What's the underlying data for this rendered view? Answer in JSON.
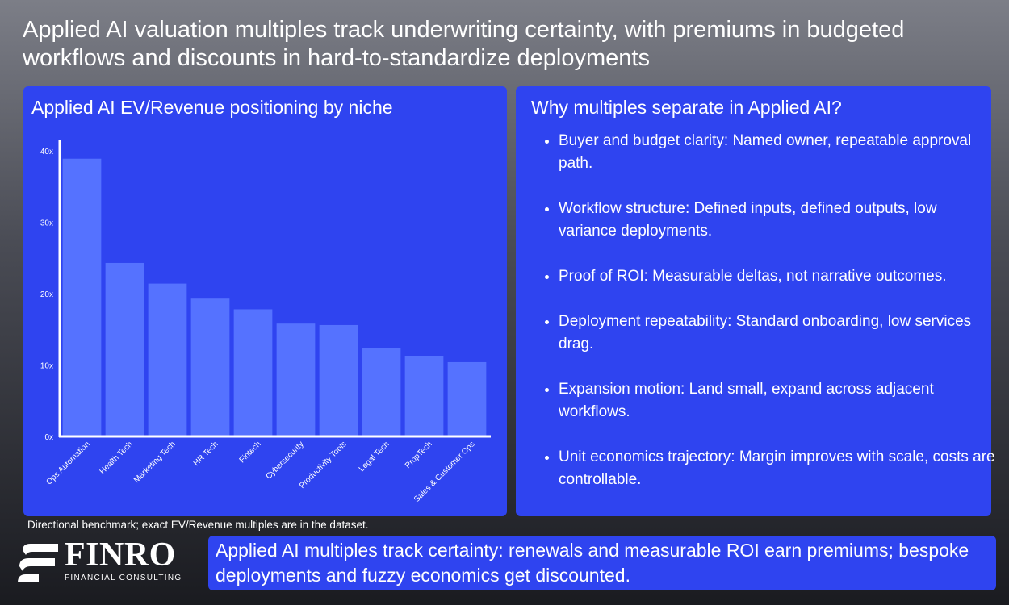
{
  "headline": "Applied AI valuation multiples track underwriting certainty, with premiums in budgeted workflows and discounts in hard-to-standardize deployments",
  "chart_panel": {
    "title": "Applied AI EV/Revenue positioning by niche"
  },
  "chart_data": {
    "type": "bar",
    "title": "Applied AI EV/Revenue positioning by niche",
    "categories": [
      "Ops Automation",
      "Health Tech",
      "Marketing Tech",
      "HR Tech",
      "Fintech",
      "Cybersecurity",
      "Productivity Tools",
      "Legal Tech",
      "PropTech",
      "Sales & Customer Ops"
    ],
    "values": [
      38.9,
      24.3,
      21.4,
      19.3,
      17.8,
      15.8,
      15.6,
      12.4,
      11.3,
      10.4
    ],
    "yticks": [
      "0x",
      "10x",
      "20x",
      "30x",
      "40x"
    ],
    "ylim": [
      0,
      40
    ],
    "grid": false,
    "bar_color": "#5572ff"
  },
  "reasons_panel": {
    "title": "Why multiples separate in Applied AI?",
    "items": [
      "Buyer and budget clarity: Named owner, repeatable approval path.",
      "Workflow structure: Defined inputs, defined outputs, low variance deployments.",
      "Proof of ROI: Measurable deltas, not narrative outcomes.",
      "Deployment repeatability: Standard onboarding, low services drag.",
      "Expansion motion: Land small, expand across adjacent workflows.",
      "Unit economics trajectory: Margin improves with scale, costs are controllable."
    ]
  },
  "footnote": "Directional benchmark; exact EV/Revenue multiples are in the dataset.",
  "logo": {
    "word": "FINRO",
    "subtitle": "FINANCIAL CONSULTING"
  },
  "callout": "Applied AI multiples track certainty: renewals and measurable ROI earn premiums; bespoke deployments and fuzzy economics get discounted.",
  "colors": {
    "panel": "#2f44f0",
    "bar": "#5572ff",
    "text": "#ffffff"
  }
}
